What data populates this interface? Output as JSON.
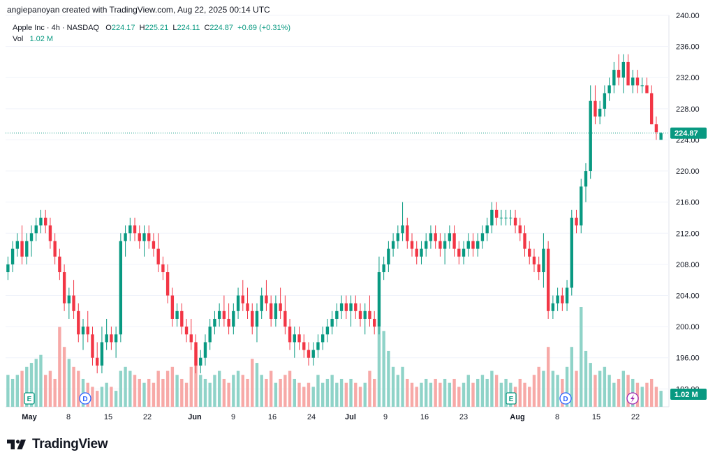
{
  "header": {
    "text": "angiepanoyan created with TradingView.com, Aug 22, 2025 00:14 UTC"
  },
  "legend": {
    "symbol": "Apple Inc · 4h · NASDAQ",
    "o_label": "O",
    "o": "224.17",
    "h_label": "H",
    "h": "225.21",
    "l_label": "L",
    "l": "224.11",
    "c_label": "C",
    "c": "224.87",
    "change": "+0.69 (+0.31%)",
    "vol_label": "Vol",
    "vol": "1.02 M"
  },
  "price_tag": "224.87",
  "vol_tag": "1.02 M",
  "logo_text": "TradingView",
  "colors": {
    "up": "#089981",
    "down": "#f23645",
    "up_vol": "#8fd3c8",
    "down_vol": "#f7a9a7",
    "grid": "#f0f3fa"
  },
  "chart_data": {
    "type": "candlestick",
    "y_ticks": [
      "192.00",
      "196.00",
      "200.00",
      "204.00",
      "208.00",
      "212.00",
      "216.00",
      "220.00",
      "224.00",
      "228.00",
      "232.00",
      "236.00",
      "240.00"
    ],
    "ylim": [
      189.7,
      240.0
    ],
    "x_ticks": [
      "May",
      "8",
      "15",
      "22",
      "Jun",
      "9",
      "16",
      "24",
      "Jul",
      "9",
      "16",
      "23",
      "Aug",
      "8",
      "15",
      "22"
    ],
    "event_markers": [
      "E",
      "D",
      "E",
      "D"
    ],
    "last_price": 224.87,
    "candles": [
      [
        207,
        209,
        206,
        208,
        8
      ],
      [
        208,
        211,
        207,
        210,
        7
      ],
      [
        210,
        212,
        209,
        211,
        8
      ],
      [
        211,
        213,
        208,
        209,
        9
      ],
      [
        209,
        212,
        208,
        211,
        10
      ],
      [
        211,
        213,
        209,
        212,
        11
      ],
      [
        212,
        214,
        211,
        213,
        12
      ],
      [
        213,
        215,
        212,
        214,
        13
      ],
      [
        214,
        215,
        212,
        213,
        8
      ],
      [
        213,
        214,
        210,
        211,
        9
      ],
      [
        211,
        212,
        208,
        209,
        7
      ],
      [
        209,
        210,
        206,
        207,
        20
      ],
      [
        207,
        208,
        202,
        203,
        15
      ],
      [
        203,
        205,
        201,
        204,
        12
      ],
      [
        204,
        206,
        201,
        202,
        10
      ],
      [
        202,
        203,
        198,
        199,
        9
      ],
      [
        199,
        201,
        197,
        200,
        7
      ],
      [
        200,
        202,
        198,
        199,
        6
      ],
      [
        199,
        200,
        195,
        196,
        5
      ],
      [
        196,
        198,
        194,
        195,
        4
      ],
      [
        195,
        200,
        194,
        198,
        5
      ],
      [
        198,
        201,
        197,
        199,
        6
      ],
      [
        199,
        200,
        197,
        198,
        5
      ],
      [
        198,
        200,
        196,
        199,
        4
      ],
      [
        199,
        212,
        198,
        211,
        9
      ],
      [
        211,
        213,
        209,
        212,
        10
      ],
      [
        212,
        214,
        211,
        213,
        9
      ],
      [
        213,
        214,
        211,
        212,
        8
      ],
      [
        212,
        213,
        210,
        211,
        7
      ],
      [
        211,
        213,
        209,
        212,
        6
      ],
      [
        212,
        213,
        210,
        211,
        7
      ],
      [
        211,
        212,
        209,
        210,
        6
      ],
      [
        210,
        212,
        207,
        208,
        9
      ],
      [
        208,
        209,
        206,
        207,
        7
      ],
      [
        207,
        208,
        203,
        204,
        9
      ],
      [
        204,
        205,
        200,
        201,
        10
      ],
      [
        201,
        203,
        200,
        202,
        8
      ],
      [
        202,
        203,
        199,
        200,
        7
      ],
      [
        200,
        201,
        198,
        199,
        6
      ],
      [
        199,
        201,
        197,
        198,
        10
      ],
      [
        198,
        199,
        194,
        195,
        15
      ],
      [
        195,
        197,
        194,
        196,
        8
      ],
      [
        196,
        199,
        195,
        198,
        7
      ],
      [
        198,
        201,
        197,
        200,
        6
      ],
      [
        200,
        202,
        199,
        201,
        8
      ],
      [
        201,
        203,
        200,
        202,
        9
      ],
      [
        202,
        204,
        200,
        201,
        7
      ],
      [
        201,
        203,
        199,
        200,
        6
      ],
      [
        200,
        203,
        199,
        202,
        8
      ],
      [
        202,
        205,
        201,
        204,
        9
      ],
      [
        204,
        206,
        202,
        203,
        8
      ],
      [
        203,
        205,
        201,
        202,
        7
      ],
      [
        202,
        203,
        199,
        200,
        12
      ],
      [
        200,
        203,
        198,
        202,
        11
      ],
      [
        202,
        205,
        201,
        204,
        8
      ],
      [
        204,
        206,
        202,
        203,
        7
      ],
      [
        203,
        204,
        200,
        201,
        9
      ],
      [
        201,
        204,
        200,
        203,
        6
      ],
      [
        203,
        205,
        201,
        202,
        7
      ],
      [
        202,
        204,
        199,
        200,
        8
      ],
      [
        200,
        201,
        197,
        198,
        9
      ],
      [
        198,
        200,
        196,
        199,
        7
      ],
      [
        199,
        200,
        197,
        198,
        6
      ],
      [
        198,
        199,
        196,
        197,
        5
      ],
      [
        197,
        198,
        195,
        196,
        6
      ],
      [
        196,
        198,
        195,
        197,
        5
      ],
      [
        197,
        199,
        196,
        198,
        8
      ],
      [
        198,
        200,
        197,
        199,
        6
      ],
      [
        199,
        201,
        198,
        200,
        7
      ],
      [
        200,
        202,
        199,
        201,
        8
      ],
      [
        201,
        203,
        200,
        202,
        6
      ],
      [
        202,
        204,
        201,
        203,
        7
      ],
      [
        203,
        204,
        201,
        202,
        6
      ],
      [
        202,
        204,
        200,
        203,
        7
      ],
      [
        203,
        204,
        201,
        202,
        6
      ],
      [
        202,
        203,
        200,
        201,
        5
      ],
      [
        201,
        203,
        199,
        202,
        6
      ],
      [
        202,
        204,
        200,
        201,
        9
      ],
      [
        201,
        202,
        199,
        200,
        7
      ],
      [
        200,
        209,
        199,
        207,
        20
      ],
      [
        207,
        209,
        206,
        208,
        19
      ],
      [
        208,
        211,
        207,
        210,
        14
      ],
      [
        210,
        212,
        209,
        211,
        10
      ],
      [
        211,
        213,
        210,
        212,
        8
      ],
      [
        212,
        216,
        211,
        213,
        10
      ],
      [
        213,
        214,
        210,
        211,
        7
      ],
      [
        211,
        212,
        209,
        210,
        6
      ],
      [
        210,
        211,
        208,
        209,
        5
      ],
      [
        209,
        211,
        208,
        210,
        6
      ],
      [
        210,
        212,
        209,
        211,
        7
      ],
      [
        211,
        213,
        210,
        212,
        6
      ],
      [
        212,
        213,
        210,
        211,
        7
      ],
      [
        211,
        212,
        209,
        210,
        6
      ],
      [
        210,
        212,
        208,
        211,
        7
      ],
      [
        211,
        213,
        210,
        212,
        6
      ],
      [
        212,
        213,
        209,
        210,
        7
      ],
      [
        210,
        211,
        208,
        209,
        5
      ],
      [
        209,
        211,
        208,
        210,
        6
      ],
      [
        210,
        212,
        209,
        211,
        8
      ],
      [
        211,
        212,
        209,
        210,
        6
      ],
      [
        210,
        212,
        209,
        211,
        7
      ],
      [
        211,
        213,
        210,
        212,
        8
      ],
      [
        212,
        214,
        211,
        213,
        7
      ],
      [
        213,
        216,
        212,
        215,
        9
      ],
      [
        215,
        216,
        213,
        214,
        8
      ],
      [
        214,
        215,
        213,
        214,
        6
      ],
      [
        214,
        215,
        213,
        214,
        7
      ],
      [
        214,
        215,
        213,
        214,
        6
      ],
      [
        214,
        215,
        212,
        213,
        5
      ],
      [
        213,
        214,
        211,
        212,
        7
      ],
      [
        212,
        213,
        209,
        210,
        6
      ],
      [
        210,
        211,
        208,
        209,
        5
      ],
      [
        209,
        210,
        207,
        208,
        8
      ],
      [
        208,
        209,
        206,
        207,
        10
      ],
      [
        207,
        212,
        205,
        210,
        9
      ],
      [
        210,
        211,
        201,
        202,
        15
      ],
      [
        202,
        204,
        201,
        203,
        9
      ],
      [
        203,
        205,
        202,
        204,
        8
      ],
      [
        204,
        205,
        202,
        203,
        7
      ],
      [
        203,
        206,
        202,
        205,
        10
      ],
      [
        205,
        215,
        204,
        214,
        15
      ],
      [
        214,
        215,
        212,
        213,
        9
      ],
      [
        213,
        219,
        212,
        218,
        25
      ],
      [
        218,
        221,
        216,
        220,
        14
      ],
      [
        220,
        231,
        219,
        229,
        11
      ],
      [
        229,
        231,
        226,
        227,
        8
      ],
      [
        227,
        229,
        226,
        228,
        9
      ],
      [
        228,
        231,
        227,
        230,
        10
      ],
      [
        230,
        232,
        229,
        231,
        8
      ],
      [
        231,
        234,
        230,
        233,
        6
      ],
      [
        233,
        235,
        231,
        232,
        7
      ],
      [
        232,
        235,
        230,
        234,
        9
      ],
      [
        234,
        235,
        231,
        231,
        8
      ],
      [
        231,
        233,
        230,
        232,
        7
      ],
      [
        232,
        233,
        230,
        231,
        6
      ],
      [
        231,
        232,
        230,
        231,
        5
      ],
      [
        231,
        232,
        230,
        230,
        6
      ],
      [
        230,
        231,
        226,
        226,
        7
      ],
      [
        226,
        227,
        224,
        225,
        5
      ],
      [
        224,
        225,
        224,
        224.87,
        4
      ]
    ]
  }
}
